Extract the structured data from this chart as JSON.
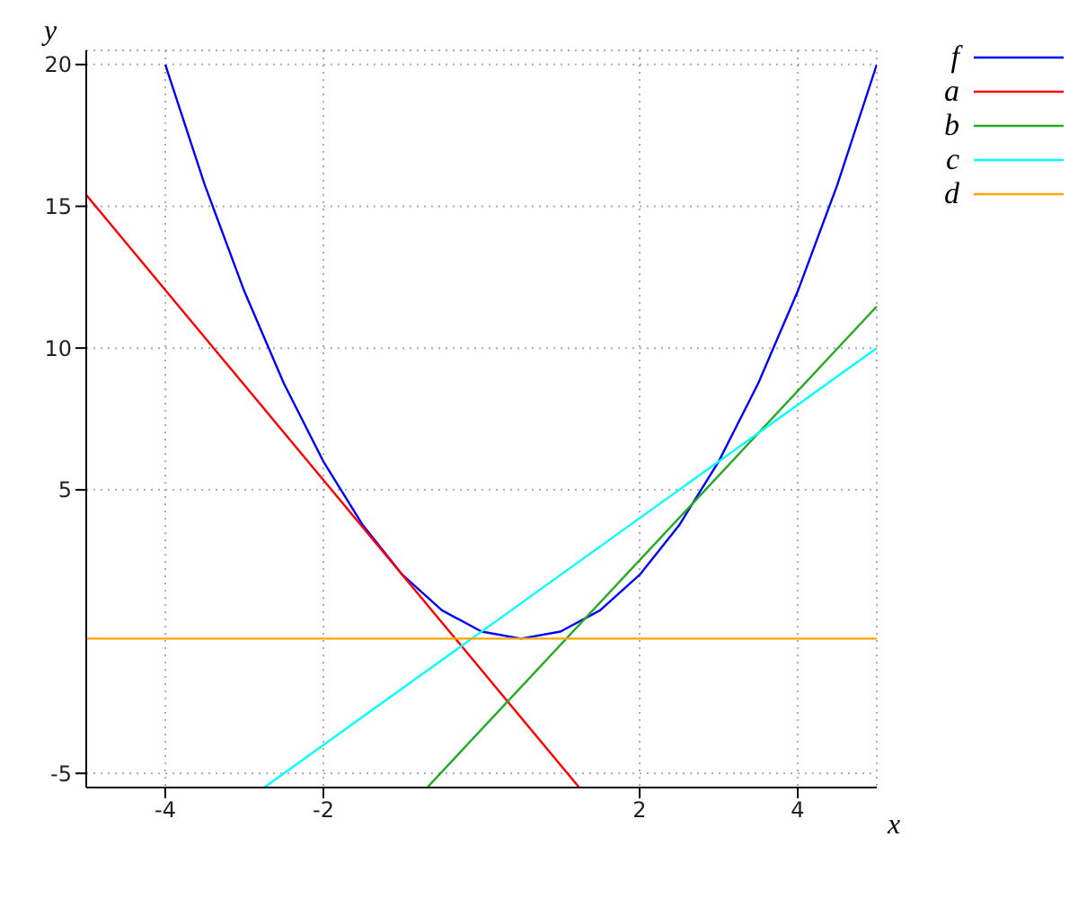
{
  "chart_data": {
    "type": "line",
    "xlabel": "x",
    "ylabel": "y",
    "xlim": [
      -5,
      5
    ],
    "ylim": [
      -5.5,
      20.5
    ],
    "xticks": [
      -4,
      -2,
      2,
      4
    ],
    "yticks": [
      -5,
      5,
      10,
      15,
      20
    ],
    "grid": true,
    "legend": "top right",
    "marker": "none",
    "series": [
      {
        "name": "f",
        "color": "#0000ff",
        "x": [
          -4,
          -3.5,
          -3,
          -2.5,
          -2,
          -1.5,
          -1,
          -0.5,
          0,
          0.5,
          1,
          1.5,
          2,
          2.5,
          3,
          3.5,
          4,
          4.5,
          5
        ],
        "values": [
          20,
          15.75,
          12,
          8.75,
          6,
          3.75,
          2,
          0.75,
          0,
          -0.25,
          0,
          0.75,
          2,
          3.75,
          6,
          8.75,
          12,
          15.75,
          20
        ]
      },
      {
        "name": "a",
        "color": "#ff0000",
        "x": [
          -5,
          1.23
        ],
        "values": [
          15.4,
          -5.48
        ]
      },
      {
        "name": "b",
        "color": "#22aa22",
        "x": [
          -0.68,
          5
        ],
        "values": [
          -5.48,
          11.47
        ]
      },
      {
        "name": "c",
        "color": "#00ffff",
        "x": [
          -2.75,
          5
        ],
        "values": [
          -5.5,
          10
        ]
      },
      {
        "name": "d",
        "color": "#ffa500",
        "x": [
          -5,
          5
        ],
        "values": [
          -0.25,
          -0.25
        ]
      }
    ]
  }
}
